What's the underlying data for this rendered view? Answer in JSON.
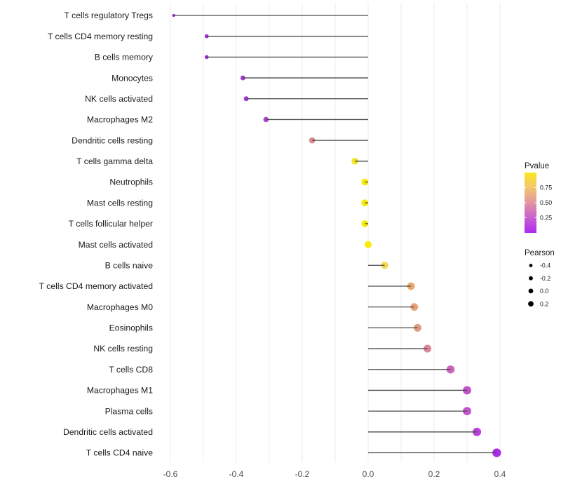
{
  "chart_data": {
    "type": "scatter",
    "subtype": "lollipop",
    "orientation": "horizontal",
    "title": "",
    "xlabel": "",
    "ylabel": "",
    "categories": [
      "T cells regulatory  Tregs",
      "T cells CD4 memory resting",
      "B cells memory",
      "Monocytes",
      "NK cells activated",
      "Macrophages M2",
      "Dendritic cells resting",
      "T cells gamma delta",
      "Neutrophils",
      "Mast cells resting",
      "T cells follicular helper",
      "Mast cells activated",
      "B cells naive",
      "T cells CD4 memory activated",
      "Macrophages M0",
      "Eosinophils",
      "NK cells resting",
      "T cells CD8",
      "Macrophages M1",
      "Plasma cells",
      "Dendritic cells activated",
      "T cells CD4 naive"
    ],
    "series": [
      {
        "name": "Pearson",
        "values": [
          -0.59,
          -0.49,
          -0.49,
          -0.38,
          -0.37,
          -0.31,
          -0.17,
          -0.04,
          -0.01,
          -0.01,
          -0.01,
          0.0,
          0.05,
          0.13,
          0.14,
          0.15,
          0.18,
          0.25,
          0.3,
          0.3,
          0.33,
          0.39
        ]
      }
    ],
    "point_pvalues_estimated": [
      0.01,
      0.02,
      0.02,
      0.06,
      0.07,
      0.12,
      0.55,
      0.85,
      0.93,
      0.93,
      0.94,
      0.95,
      0.8,
      0.62,
      0.6,
      0.55,
      0.45,
      0.3,
      0.22,
      0.22,
      0.14,
      0.06
    ],
    "point_colors": [
      "#9929D2",
      "#9D2FD6",
      "#9D2FD6",
      "#A43AD6",
      "#A53CD5",
      "#AC46D2",
      "#D98B8D",
      "#F1E32B",
      "#F6E90E",
      "#F6E90E",
      "#F7EA0C",
      "#F8EB06",
      "#F1DA4D",
      "#E9A76E",
      "#E8A478",
      "#E39B84",
      "#DA879A",
      "#CD64BE",
      "#C351CB",
      "#C351CB",
      "#B941DB",
      "#A92CE6"
    ],
    "baseline_x": 0,
    "xlim": [
      -0.644,
      0.442
    ],
    "xticks": [
      -0.6,
      -0.4,
      -0.2,
      0.0,
      0.2,
      0.4
    ],
    "xtick_labels": [
      "-0.6",
      "-0.4",
      "-0.2",
      "0.0",
      "0.2",
      "0.4"
    ],
    "grid": true,
    "grid_step": 0.1,
    "legend_position": "right",
    "legends": {
      "color": {
        "title": "Pvalue",
        "range": [
          0,
          1
        ],
        "tick_labels": [
          "0.75",
          "0.50",
          "0.25"
        ],
        "tick_values": [
          0.75,
          0.5,
          0.25
        ],
        "gradient_stops_bottom_to_top": [
          "#AF28F0",
          "#C95FD0",
          "#E394A1",
          "#F3C56E",
          "#F9E821"
        ]
      },
      "size": {
        "title": "Pearson",
        "item_labels": [
          "-0.4",
          "-0.2",
          "0.0",
          "0.2"
        ],
        "item_values": [
          -0.4,
          -0.2,
          0.0,
          0.2
        ]
      }
    },
    "colors": {
      "stem": "#4A4A4A",
      "gridline": "#ECECEC",
      "axis_text": "#4D4D4D",
      "label_text": "#1A1A1A",
      "legend_text": "#1A1A1A",
      "legend_dot": "#000000",
      "background": "#FFFFFF",
      "colorbar_tick": "#FFFFFF"
    }
  }
}
